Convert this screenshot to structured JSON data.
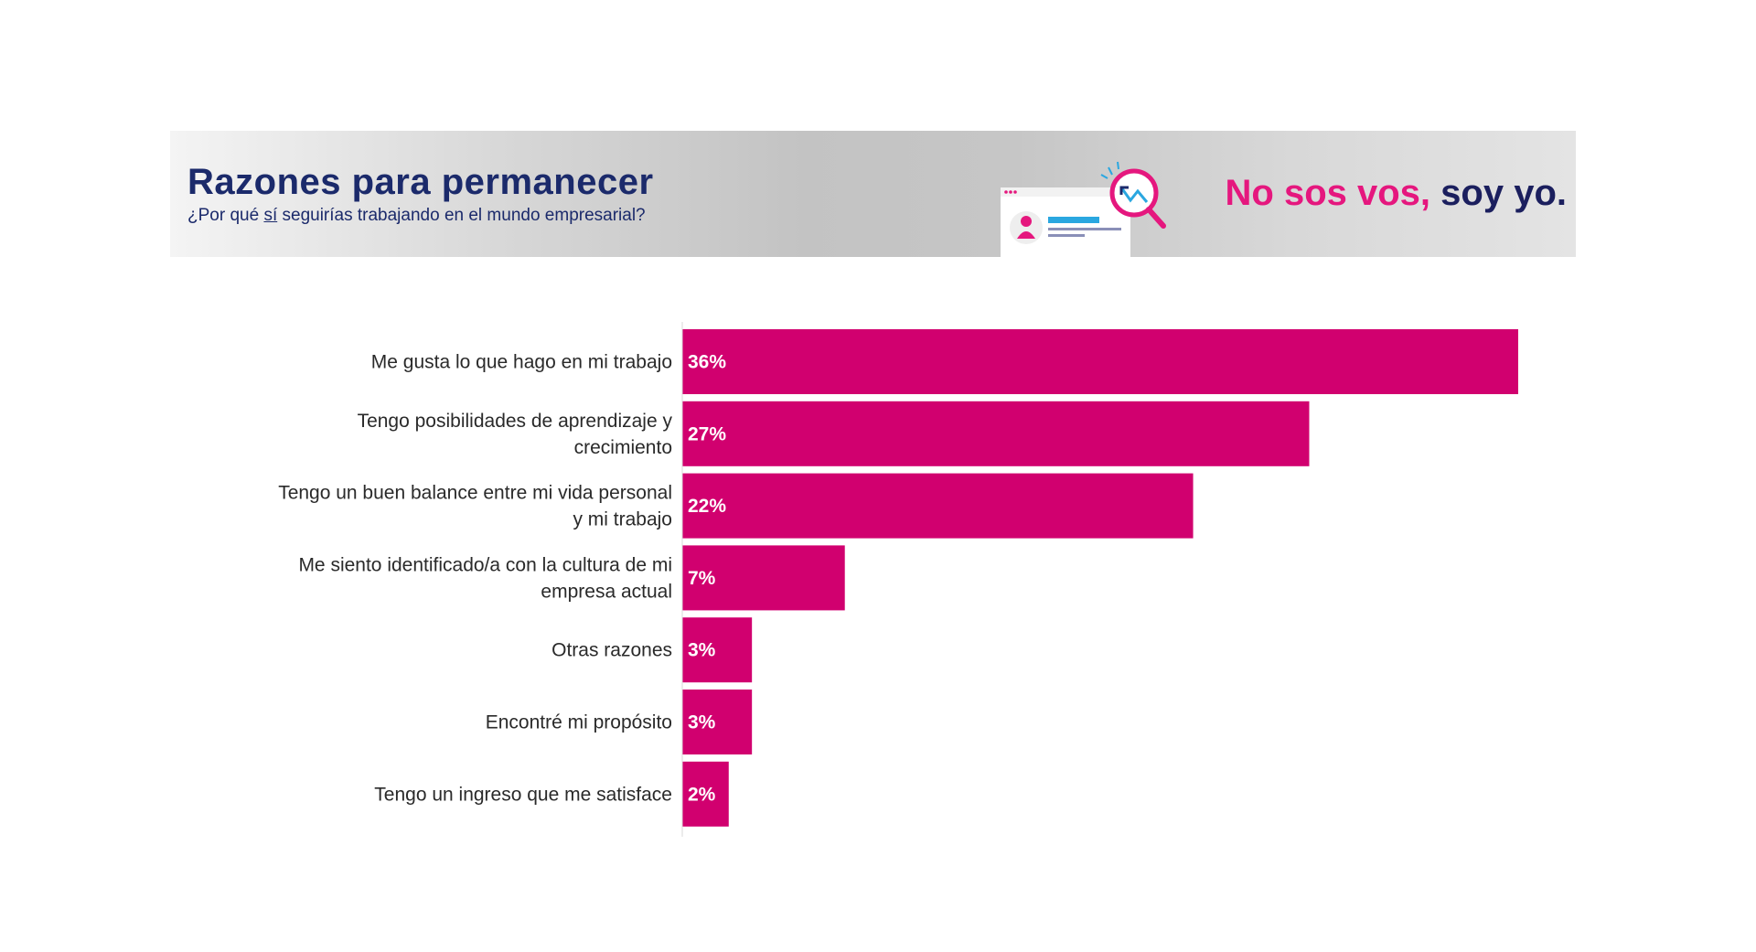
{
  "header": {
    "title": "Razones para permanecer",
    "subtitle_before": "¿Por qué ",
    "subtitle_emph": "sí",
    "subtitle_after": " seguirías trabajando en el mundo empresarial?",
    "brand_part1": "No sos vos,",
    "brand_part2": " soy yo.",
    "illustration_icon": "profile-card-with-magnifier-icon"
  },
  "chart_data": {
    "type": "bar",
    "orientation": "horizontal",
    "title": "",
    "xlabel": "",
    "ylabel": "",
    "xlim": [
      0,
      36
    ],
    "grid": false,
    "bar_color": "#d1006f",
    "categories": [
      [
        "Me gusta lo que hago en mi trabajo"
      ],
      [
        "Tengo posibilidades de aprendizaje y",
        "crecimiento"
      ],
      [
        "Tengo un buen balance entre mi vida personal",
        "y mi trabajo"
      ],
      [
        "Me siento identificado/a con la cultura de mi",
        "empresa actual"
      ],
      [
        "Otras razones"
      ],
      [
        "Encontré mi propósito"
      ],
      [
        "Tengo un ingreso que me satisface"
      ]
    ],
    "values": [
      36,
      27,
      22,
      7,
      3,
      3,
      2
    ],
    "data_labels": [
      "36%",
      "27%",
      "22%",
      "7%",
      "3%",
      "3%",
      "2%"
    ]
  }
}
